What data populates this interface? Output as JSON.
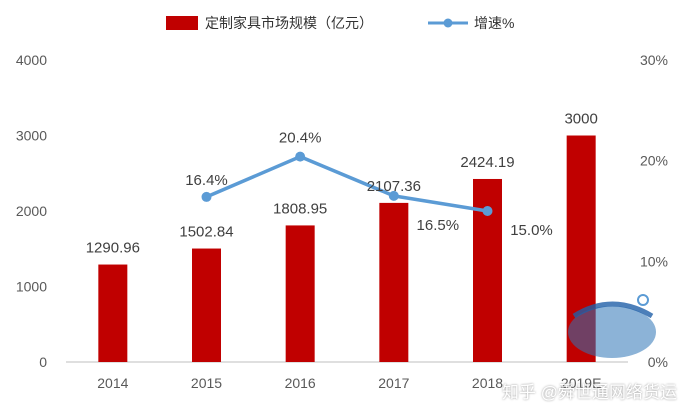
{
  "chart_data": {
    "type": "bar",
    "categories": [
      "2014",
      "2015",
      "2016",
      "2017",
      "2018",
      "2019E"
    ],
    "series": [
      {
        "name": "定制家具市场规模（亿元）",
        "type": "bar",
        "axis": "left",
        "values": [
          1290.96,
          1502.84,
          1808.95,
          2107.36,
          2424.19,
          3000
        ],
        "labels": [
          "1290.96",
          "1502.84",
          "1808.95",
          "2107.36",
          "2424.19",
          "3000"
        ],
        "color": "#C00000"
      },
      {
        "name": "增速%",
        "type": "line",
        "axis": "right",
        "values": [
          null,
          16.4,
          20.4,
          16.5,
          15.0,
          null
        ],
        "labels": [
          "",
          "16.4%",
          "20.4%",
          "16.5%",
          "15.0%",
          ""
        ],
        "color": "#5B9BD5"
      }
    ],
    "ylim_left": [
      0,
      4000
    ],
    "yticks_left": [
      "0",
      "1000",
      "2000",
      "3000",
      "4000"
    ],
    "ylim_right": [
      0,
      30
    ],
    "yticks_right": [
      "0%",
      "10%",
      "20%",
      "30%"
    ],
    "legend_position": "top-center",
    "grid": false
  },
  "watermark": {
    "text": "知乎 @舜世通网络货运"
  }
}
